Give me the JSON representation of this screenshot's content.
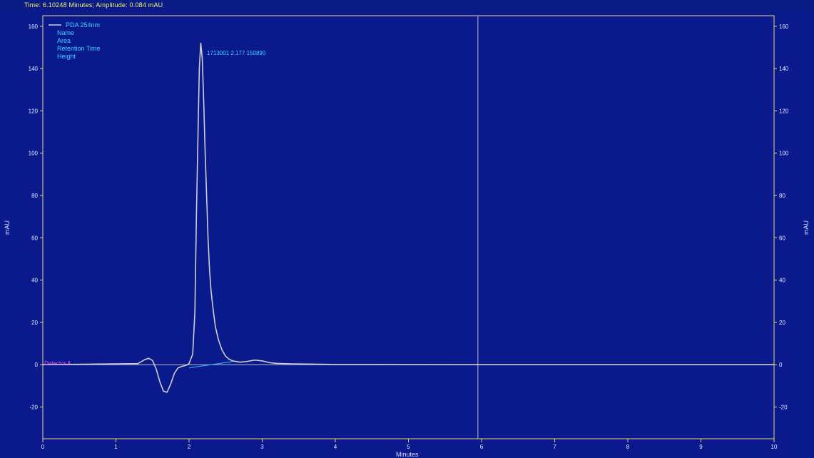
{
  "status_text": "Time: 6.10248 Minutes;  Amplitude: 0.084 mAU",
  "y_unit_left": "mAU",
  "y_unit_right": "mAU",
  "x_title": "Minutes",
  "legend": {
    "trace_name": "PDA 254nm",
    "fields": [
      "Name",
      "Area",
      "Retention Time",
      "Height"
    ]
  },
  "peak_label": "1713001  2.177  150890",
  "baseline_tag": "Detector A",
  "colors": {
    "background": "#0a1a8c",
    "axis": "#e8d77a",
    "trace": "#cfcfcf",
    "baseline_fit": "#2aa9ff",
    "legend_text": "#3fd2ff",
    "cursor": "#b9b7c9"
  },
  "chart_data": {
    "type": "line",
    "xlim": [
      0,
      10
    ],
    "ylim": [
      -35,
      165
    ],
    "x_ticks": [
      0,
      1,
      2,
      3,
      4,
      5,
      6,
      7,
      8,
      9,
      10
    ],
    "y_ticks": [
      -20,
      0,
      20,
      40,
      60,
      80,
      100,
      120,
      140,
      160
    ],
    "cursor_x": 5.95,
    "series": [
      {
        "name": "PDA 254nm",
        "x": [
          0,
          1.3,
          1.4,
          1.45,
          1.5,
          1.55,
          1.6,
          1.65,
          1.7,
          1.75,
          1.8,
          1.85,
          1.9,
          1.95,
          2.0,
          2.05,
          2.08,
          2.1,
          2.12,
          2.14,
          2.16,
          2.18,
          2.2,
          2.22,
          2.24,
          2.26,
          2.28,
          2.3,
          2.33,
          2.36,
          2.4,
          2.45,
          2.5,
          2.55,
          2.6,
          2.7,
          2.8,
          2.9,
          3.0,
          3.1,
          3.2,
          3.4,
          3.6,
          3.8,
          4.0,
          4.5,
          5.0,
          6.0,
          7.0,
          8.0,
          9.0,
          10.0
        ],
        "y": [
          0,
          0.5,
          2.5,
          3.0,
          2.0,
          -2.0,
          -8.0,
          -12.5,
          -13.0,
          -9.0,
          -4.0,
          -1.5,
          -0.8,
          -0.4,
          0.5,
          5.0,
          25.0,
          70.0,
          105.0,
          140.0,
          152.0,
          145.0,
          125.0,
          100.0,
          80.0,
          60.0,
          45.0,
          35.0,
          26.0,
          18.0,
          12.0,
          7.0,
          4.0,
          2.5,
          1.8,
          1.2,
          1.6,
          2.2,
          1.8,
          1.0,
          0.6,
          0.4,
          0.3,
          0.2,
          0.1,
          0.1,
          0.05,
          0,
          0,
          0,
          0,
          0
        ]
      },
      {
        "name": "Baseline fit",
        "x": [
          2.0,
          2.6
        ],
        "y": [
          -1.5,
          1.5
        ]
      }
    ]
  }
}
